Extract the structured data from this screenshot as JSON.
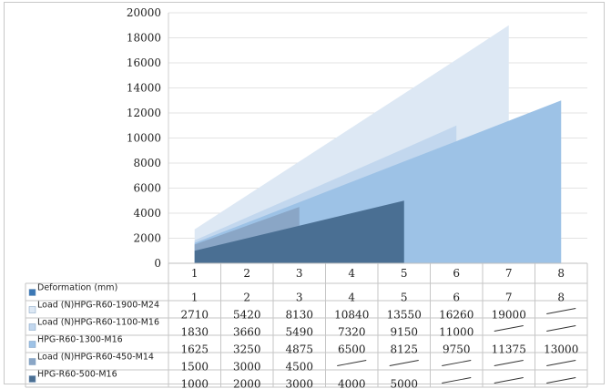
{
  "chart_data": {
    "type": "area",
    "categories": [
      "1",
      "2",
      "3",
      "4",
      "5",
      "6",
      "7",
      "8"
    ],
    "y_ticks": [
      "0",
      "2000",
      "4000",
      "6000",
      "8000",
      "10000",
      "12000",
      "14000",
      "16000",
      "18000",
      "20000"
    ],
    "ylim": [
      0,
      20000
    ],
    "grid": true,
    "legend_placement": "data table below chart",
    "series": [
      {
        "name": "Deformation (mm)",
        "color": "#3b78b5",
        "values": [
          1,
          2,
          3,
          4,
          5,
          6,
          7,
          8
        ],
        "cells": [
          "1",
          "2",
          "3",
          "4",
          "5",
          "6",
          "7",
          "8"
        ]
      },
      {
        "name": "Load (N)HPG-R60-1900-M24",
        "color": "#dde8f4",
        "values": [
          2710,
          5420,
          8130,
          10840,
          13550,
          16260,
          19000,
          null
        ],
        "cells": [
          "2710",
          "5420",
          "8130",
          "10840",
          "13550",
          "16260",
          "19000",
          "—"
        ]
      },
      {
        "name": "Load (N)HPG-R60-1100-M16",
        "color": "#c2d7ee",
        "values": [
          1830,
          3660,
          5490,
          7320,
          9150,
          11000,
          null,
          null
        ],
        "cells": [
          "1830",
          "3660",
          "5490",
          "7320",
          "9150",
          "11000",
          "—",
          "—"
        ]
      },
      {
        "name": "HPG-R60-1300-M16",
        "color": "#9dc2e6",
        "values": [
          1625,
          3250,
          4875,
          6500,
          8125,
          9750,
          11375,
          13000
        ],
        "cells": [
          "1625",
          "3250",
          "4875",
          "6500",
          "8125",
          "9750",
          "11375",
          "13000"
        ]
      },
      {
        "name": "Load (N)HPG-R60-450-M14",
        "color": "#8aa6c6",
        "values": [
          1500,
          3000,
          4500,
          null,
          null,
          null,
          null,
          null
        ],
        "cells": [
          "1500",
          "3000",
          "4500",
          "—",
          "—",
          "—",
          "—",
          "—"
        ]
      },
      {
        "name": "HPG-R60-500-M16",
        "color": "#4a6f93",
        "values": [
          1000,
          2000,
          3000,
          4000,
          5000,
          null,
          null,
          null
        ],
        "cells": [
          "1000",
          "2000",
          "3000",
          "4000",
          "5000",
          "—",
          "—",
          "—"
        ]
      }
    ]
  }
}
